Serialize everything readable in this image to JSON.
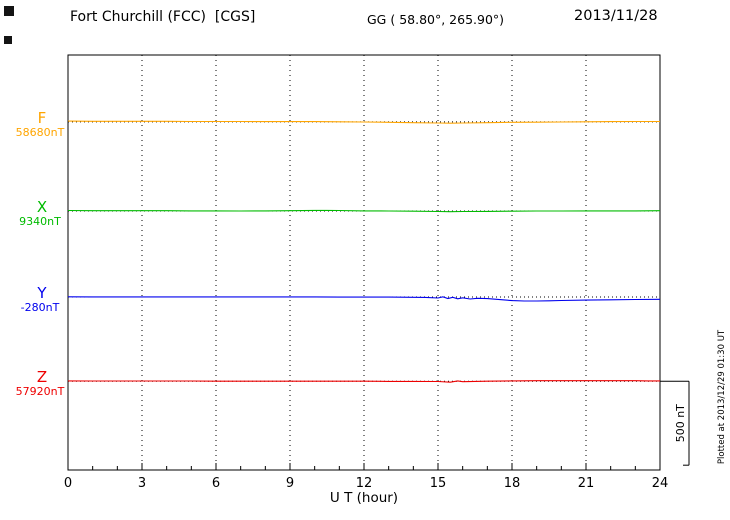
{
  "chart_data": {
    "type": "line",
    "title": "Fort Churchill (FCC)  [CGS]",
    "subtitle": "GG ( 58.80°, 265.90°)",
    "date": "2013/11/28",
    "xlabel": "U T (hour)",
    "xlim": [
      0,
      24
    ],
    "x_ticks": [
      0,
      3,
      6,
      9,
      12,
      15,
      18,
      21,
      24
    ],
    "x_minor_step": 1,
    "grid": "dotted vertical lines at major ticks",
    "scale_bar": {
      "label": "500 nT",
      "span_nT": 500
    },
    "plotted_at": "Plotted at 2013/12/29 01:30 UT",
    "series": [
      {
        "name": "F",
        "value_label": "58680nT",
        "baseline_nT": 58680,
        "color": "#FFA500",
        "offset_frac": 0.161,
        "points": [
          [
            0,
            4
          ],
          [
            1,
            3
          ],
          [
            2,
            3
          ],
          [
            3,
            3
          ],
          [
            4,
            3
          ],
          [
            5,
            2
          ],
          [
            6,
            2
          ],
          [
            7,
            2
          ],
          [
            8,
            1
          ],
          [
            9,
            1
          ],
          [
            10,
            1
          ],
          [
            11,
            0
          ],
          [
            12,
            -1
          ],
          [
            13,
            -3
          ],
          [
            14,
            -5
          ],
          [
            15,
            -7
          ],
          [
            15.5,
            -8
          ],
          [
            16,
            -7
          ],
          [
            17,
            -5
          ],
          [
            18,
            -3
          ],
          [
            19,
            -2
          ],
          [
            20,
            -1
          ],
          [
            21,
            0
          ],
          [
            22,
            1
          ],
          [
            23,
            2
          ],
          [
            24,
            2
          ]
        ]
      },
      {
        "name": "X",
        "value_label": "9340nT",
        "baseline_nT": 9340,
        "color": "#00BB00",
        "offset_frac": 0.376,
        "points": [
          [
            0,
            3
          ],
          [
            1,
            2
          ],
          [
            2,
            2
          ],
          [
            3,
            2
          ],
          [
            4,
            2
          ],
          [
            5,
            1
          ],
          [
            6,
            1
          ],
          [
            7,
            0
          ],
          [
            8,
            1
          ],
          [
            9,
            2
          ],
          [
            10,
            4
          ],
          [
            10.5,
            4
          ],
          [
            11,
            3
          ],
          [
            12,
            1
          ],
          [
            13,
            0
          ],
          [
            14,
            -1
          ],
          [
            15,
            -3
          ],
          [
            15.5,
            -4
          ],
          [
            16,
            -3
          ],
          [
            17,
            -2
          ],
          [
            18,
            -1
          ],
          [
            19,
            0
          ],
          [
            20,
            0
          ],
          [
            21,
            1
          ],
          [
            22,
            1
          ],
          [
            23,
            1
          ],
          [
            24,
            2
          ]
        ]
      },
      {
        "name": "Y",
        "value_label": "-280nT",
        "baseline_nT": -280,
        "color": "#0000EE",
        "offset_frac": 0.583,
        "points": [
          [
            0,
            1
          ],
          [
            1,
            0
          ],
          [
            2,
            0
          ],
          [
            3,
            0
          ],
          [
            4,
            0
          ],
          [
            5,
            0
          ],
          [
            6,
            0
          ],
          [
            7,
            0
          ],
          [
            8,
            0
          ],
          [
            9,
            0
          ],
          [
            10,
            0
          ],
          [
            11,
            -1
          ],
          [
            12,
            -1
          ],
          [
            13,
            -1
          ],
          [
            14,
            -2
          ],
          [
            14.5,
            -3
          ],
          [
            15,
            -6
          ],
          [
            15.2,
            1
          ],
          [
            15.4,
            -9
          ],
          [
            15.6,
            -2
          ],
          [
            15.8,
            -11
          ],
          [
            16,
            -5
          ],
          [
            16.3,
            -12
          ],
          [
            16.6,
            -8
          ],
          [
            17,
            -10
          ],
          [
            17.5,
            -16
          ],
          [
            18,
            -22
          ],
          [
            18.5,
            -24
          ],
          [
            19,
            -24
          ],
          [
            19.5,
            -23
          ],
          [
            20,
            -21
          ],
          [
            21,
            -19
          ],
          [
            22,
            -17
          ],
          [
            23,
            -15
          ],
          [
            24,
            -14
          ]
        ]
      },
      {
        "name": "Z",
        "value_label": "57920nT",
        "baseline_nT": 57920,
        "color": "#EE0000",
        "offset_frac": 0.786,
        "points": [
          [
            0,
            2
          ],
          [
            1,
            1
          ],
          [
            2,
            1
          ],
          [
            3,
            1
          ],
          [
            4,
            1
          ],
          [
            5,
            1
          ],
          [
            6,
            0
          ],
          [
            7,
            0
          ],
          [
            8,
            0
          ],
          [
            9,
            0
          ],
          [
            10,
            0
          ],
          [
            11,
            0
          ],
          [
            12,
            0
          ],
          [
            13,
            -1
          ],
          [
            14,
            -1
          ],
          [
            15,
            -2
          ],
          [
            15.5,
            -6
          ],
          [
            15.8,
            2
          ],
          [
            16,
            -3
          ],
          [
            16.5,
            -1
          ],
          [
            17,
            0
          ],
          [
            18,
            2
          ],
          [
            19,
            3
          ],
          [
            20,
            3
          ],
          [
            21,
            3
          ],
          [
            22,
            3
          ],
          [
            23,
            3
          ],
          [
            23.5,
            2
          ],
          [
            24,
            2
          ]
        ]
      }
    ]
  }
}
